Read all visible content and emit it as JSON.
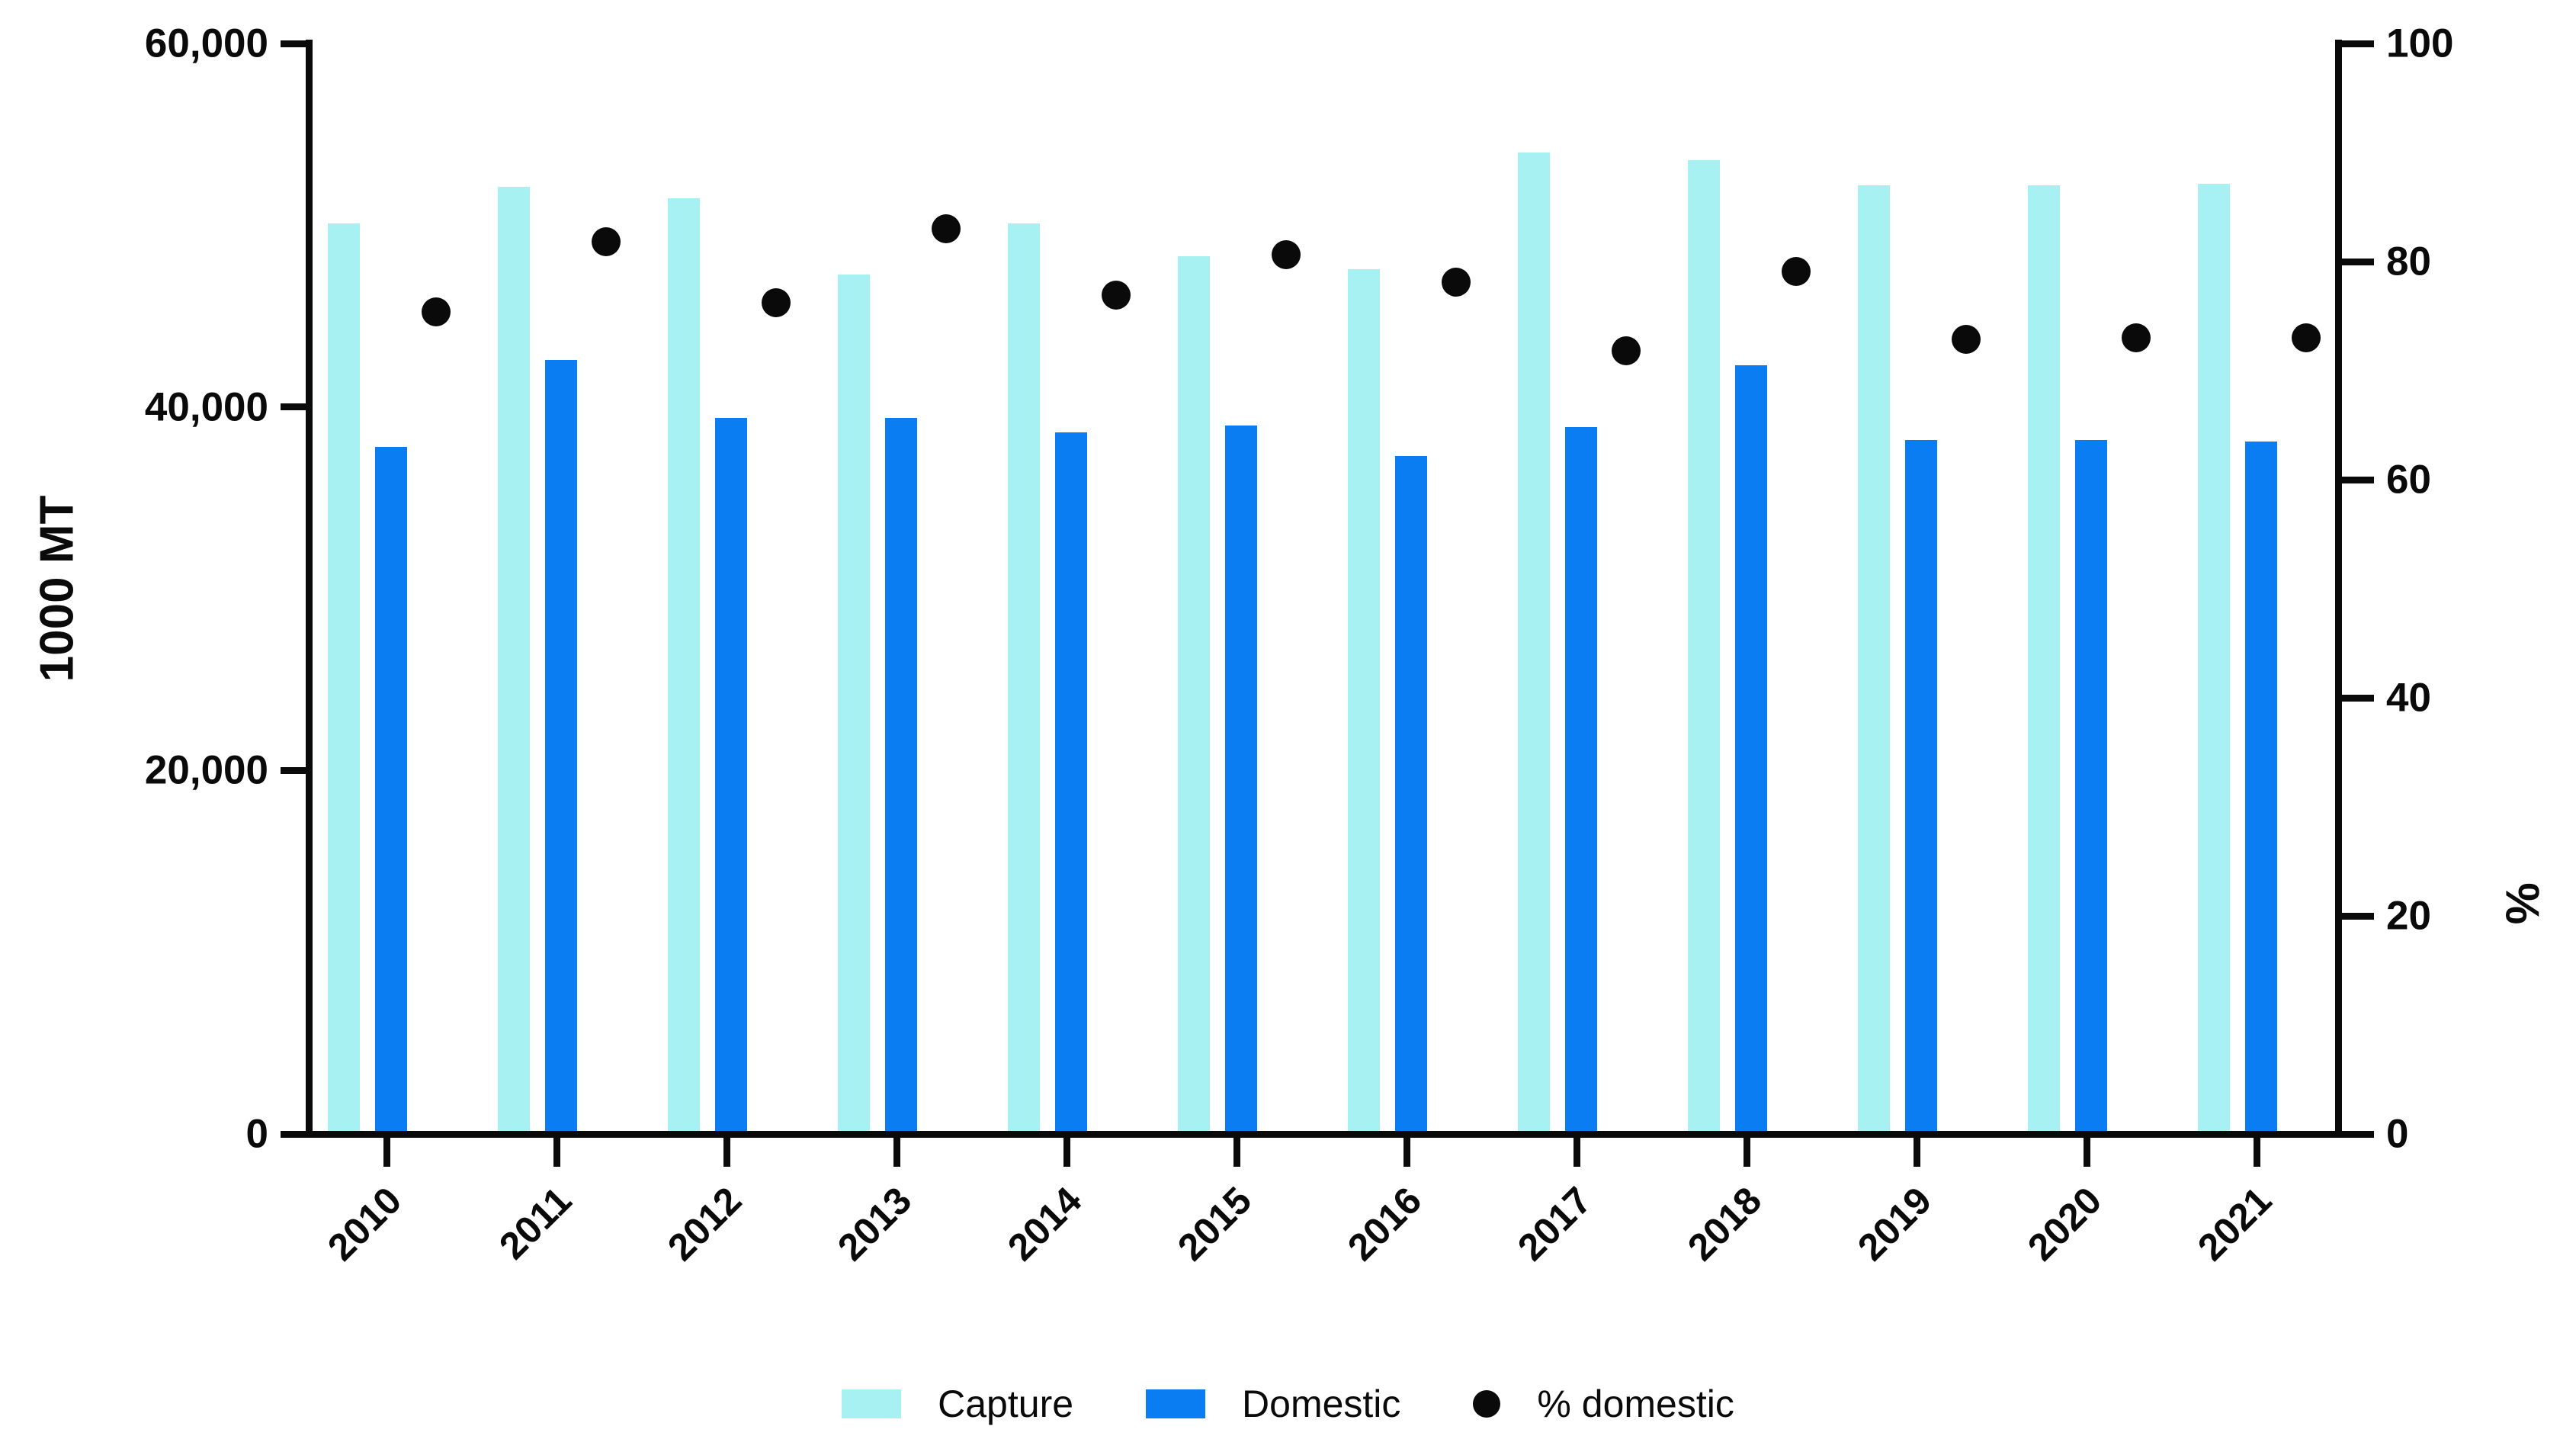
{
  "chart_data": {
    "type": "bar",
    "subtype": "grouped-bars-with-scatter-overlay",
    "title": "",
    "categories": [
      "2010",
      "2011",
      "2012",
      "2013",
      "2014",
      "2015",
      "2016",
      "2017",
      "2018",
      "2019",
      "2020",
      "2021"
    ],
    "series": [
      {
        "name": "Capture",
        "type": "bar",
        "axis": "left",
        "color": "#a7f1f2",
        "values": [
          50100,
          52100,
          51500,
          47300,
          50100,
          48300,
          47600,
          54000,
          53600,
          52200,
          52200,
          52300
        ]
      },
      {
        "name": "Domestic",
        "type": "bar",
        "axis": "left",
        "color": "#0b7df2",
        "values": [
          37800,
          42600,
          39400,
          39400,
          38600,
          39000,
          37300,
          38900,
          42300,
          38200,
          38200,
          38100
        ]
      },
      {
        "name": "% domestic",
        "type": "scatter",
        "axis": "right",
        "color": "#0a0a0a",
        "values": [
          75.4,
          81.8,
          76.2,
          83.0,
          76.9,
          80.6,
          78.1,
          71.8,
          79.1,
          72.9,
          73.0,
          73.0
        ]
      }
    ],
    "left_axis": {
      "title": "1000 MT",
      "min": 0,
      "max": 60000,
      "ticks": [
        0,
        20000,
        40000,
        60000
      ],
      "tick_labels": [
        "0",
        "20,000",
        "40,000",
        "60,000"
      ]
    },
    "right_axis": {
      "title": "%",
      "min": 0,
      "max": 100,
      "ticks": [
        0,
        20,
        40,
        60,
        80,
        100
      ],
      "tick_labels": [
        "0",
        "20",
        "40",
        "60",
        "80",
        "100"
      ]
    },
    "x_axis": {
      "title": "",
      "label_rotation_deg": -45
    },
    "grid": false,
    "legend_position": "bottom"
  }
}
